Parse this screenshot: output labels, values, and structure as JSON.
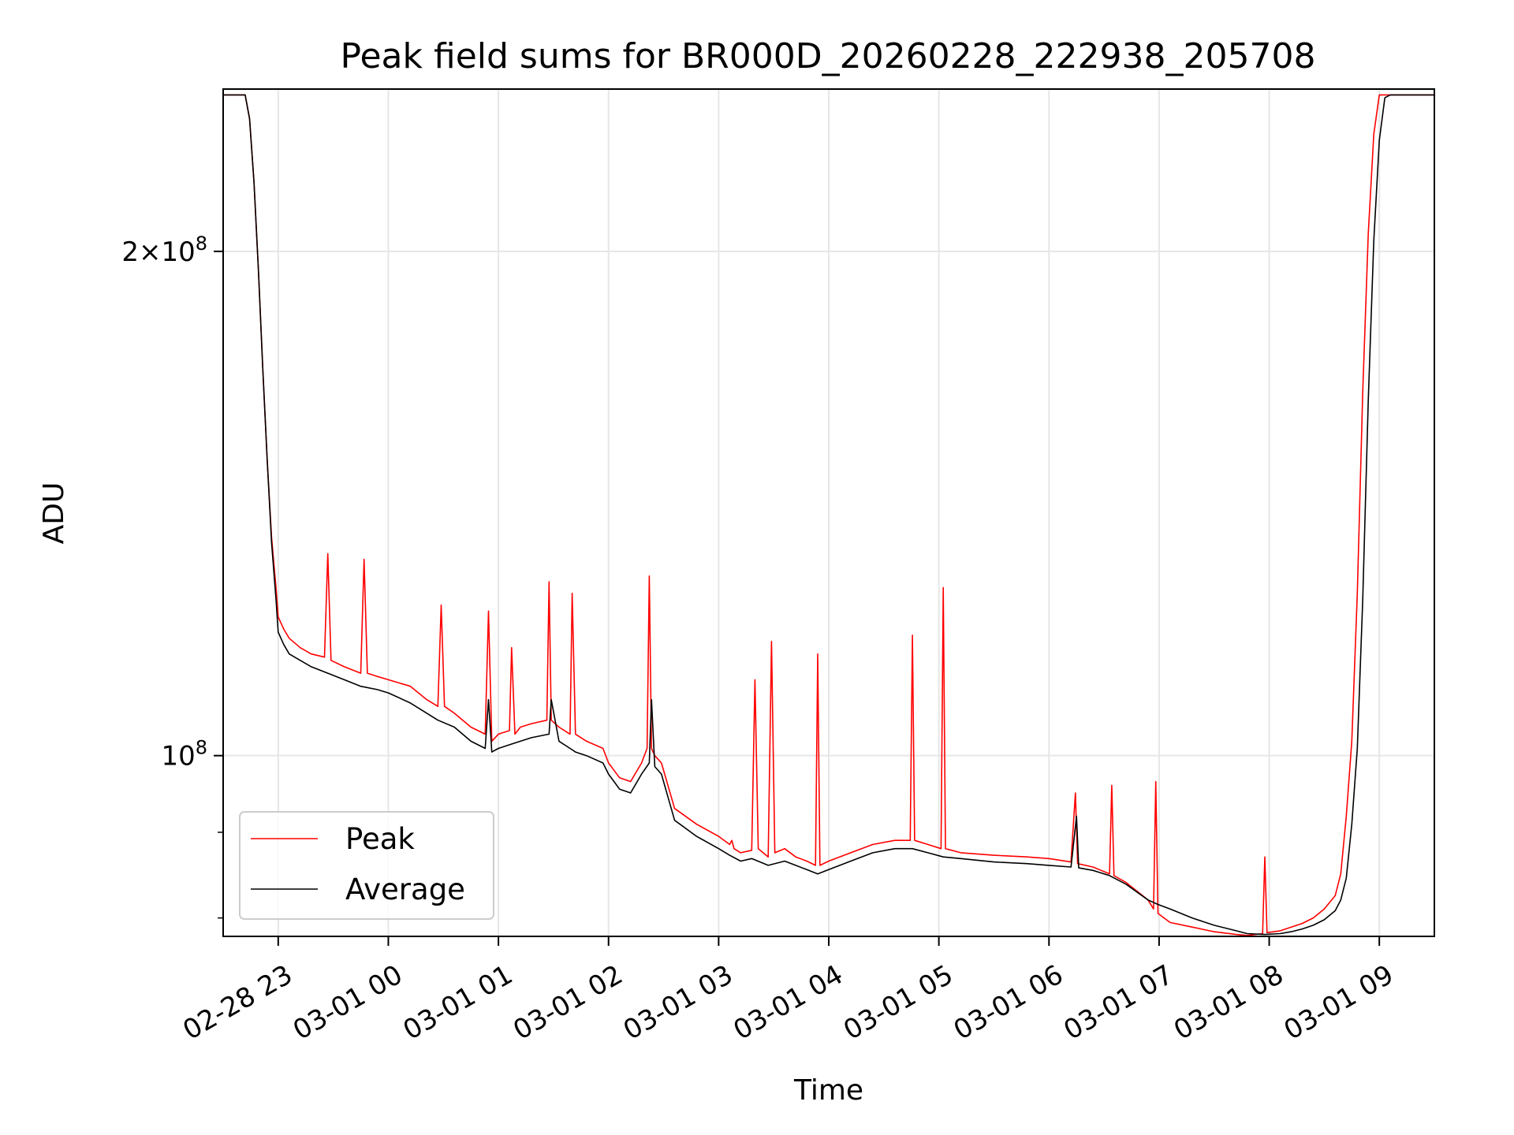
{
  "chart_data": {
    "type": "line",
    "title": "Peak field sums for BR000D_20260228_222938_205708",
    "xlabel": "Time",
    "ylabel": "ADU",
    "yscale": "log",
    "ylim": [
      78000000,
      250000000
    ],
    "xlim": [
      -0.5,
      10.5
    ],
    "grid": true,
    "legend_position": "lower-left",
    "x_ticks": [
      {
        "value": 0,
        "label": "02-28 23"
      },
      {
        "value": 1,
        "label": "03-01 00"
      },
      {
        "value": 2,
        "label": "03-01 01"
      },
      {
        "value": 3,
        "label": "03-01 02"
      },
      {
        "value": 4,
        "label": "03-01 03"
      },
      {
        "value": 5,
        "label": "03-01 04"
      },
      {
        "value": 6,
        "label": "03-01 05"
      },
      {
        "value": 7,
        "label": "03-01 06"
      },
      {
        "value": 8,
        "label": "03-01 07"
      },
      {
        "value": 9,
        "label": "03-01 08"
      },
      {
        "value": 10,
        "label": "03-01 09"
      }
    ],
    "y_ticks": [
      {
        "value": 200000000,
        "label": "2×10⁸",
        "mantissa": "2",
        "exponent": "8"
      },
      {
        "value": 100000000,
        "label": "10⁸",
        "mantissa": "",
        "exponent": "8"
      }
    ],
    "series": [
      {
        "name": "Peak",
        "color": "#ff0000",
        "x": [
          -0.5,
          -0.3,
          -0.26,
          -0.22,
          -0.18,
          -0.14,
          -0.1,
          -0.06,
          -0.02,
          0.0,
          0.05,
          0.1,
          0.2,
          0.3,
          0.42,
          0.45,
          0.48,
          0.6,
          0.75,
          0.78,
          0.81,
          0.9,
          1.0,
          1.2,
          1.35,
          1.45,
          1.48,
          1.51,
          1.6,
          1.75,
          1.88,
          1.91,
          1.94,
          2.0,
          2.1,
          2.12,
          2.15,
          2.2,
          2.3,
          2.44,
          2.46,
          2.48,
          2.55,
          2.65,
          2.67,
          2.7,
          2.8,
          2.95,
          3.0,
          3.05,
          3.1,
          3.2,
          3.3,
          3.35,
          3.37,
          3.39,
          3.42,
          3.48,
          3.6,
          3.8,
          4.0,
          4.1,
          4.12,
          4.14,
          4.2,
          4.3,
          4.33,
          4.36,
          4.45,
          4.48,
          4.51,
          4.6,
          4.7,
          4.8,
          4.88,
          4.9,
          4.92,
          5.0,
          5.2,
          5.4,
          5.6,
          5.74,
          5.76,
          5.78,
          5.9,
          6.02,
          6.04,
          6.06,
          6.2,
          6.5,
          6.8,
          7.0,
          7.2,
          7.24,
          7.26,
          7.4,
          7.55,
          7.57,
          7.59,
          7.7,
          7.9,
          7.95,
          7.97,
          7.99,
          8.1,
          8.3,
          8.5,
          8.7,
          8.8,
          8.94,
          8.96,
          8.98,
          9.1,
          9.2,
          9.3,
          9.4,
          9.5,
          9.6,
          9.65,
          9.7,
          9.75,
          9.8,
          9.85,
          9.9,
          9.95,
          10.0,
          10.05,
          10.1,
          10.5
        ],
        "y": [
          248000000,
          248000000,
          240000000,
          220000000,
          195000000,
          170000000,
          150000000,
          135000000,
          126000000,
          121000000,
          119000000,
          117500000,
          116000000,
          115000000,
          114500000,
          132000000,
          114000000,
          113000000,
          112000000,
          131000000,
          112000000,
          111500000,
          111000000,
          110000000,
          108000000,
          107000000,
          123000000,
          107000000,
          106000000,
          104000000,
          103000000,
          122000000,
          102000000,
          103000000,
          103500000,
          116000000,
          103000000,
          104000000,
          104500000,
          105000000,
          127000000,
          105000000,
          104000000,
          103000000,
          125000000,
          103000000,
          102000000,
          101000000,
          99000000,
          98000000,
          97000000,
          96500000,
          99000000,
          101000000,
          128000000,
          101000000,
          100000000,
          99000000,
          93000000,
          91000000,
          89500000,
          88500000,
          89000000,
          88000000,
          87500000,
          87800000,
          111000000,
          88000000,
          87000000,
          117000000,
          87500000,
          88000000,
          87000000,
          86500000,
          86000000,
          115000000,
          86000000,
          86500000,
          87500000,
          88500000,
          89000000,
          89000000,
          118000000,
          89000000,
          88500000,
          88000000,
          126000000,
          88000000,
          87500000,
          87200000,
          87000000,
          86800000,
          86400000,
          95000000,
          86200000,
          85800000,
          85000000,
          96000000,
          84800000,
          84000000,
          82000000,
          81000000,
          96500000,
          80500000,
          79500000,
          79000000,
          78500000,
          78200000,
          78100000,
          78300000,
          87000000,
          78400000,
          78600000,
          79000000,
          79400000,
          80000000,
          81000000,
          82500000,
          85000000,
          92000000,
          102000000,
          125000000,
          165000000,
          205000000,
          235000000,
          248000000,
          248000000,
          248000000,
          248000000
        ]
      },
      {
        "name": "Average",
        "color": "#000000",
        "x": [
          -0.5,
          -0.3,
          -0.26,
          -0.22,
          -0.18,
          -0.14,
          -0.1,
          -0.06,
          -0.02,
          0.0,
          0.05,
          0.1,
          0.2,
          0.3,
          0.45,
          0.6,
          0.75,
          0.9,
          1.0,
          1.2,
          1.35,
          1.45,
          1.6,
          1.75,
          1.88,
          1.91,
          1.94,
          2.0,
          2.1,
          2.2,
          2.3,
          2.46,
          2.48,
          2.55,
          2.65,
          2.7,
          2.8,
          2.95,
          3.0,
          3.05,
          3.1,
          3.2,
          3.3,
          3.37,
          3.39,
          3.42,
          3.48,
          3.6,
          3.8,
          4.0,
          4.1,
          4.2,
          4.3,
          4.45,
          4.6,
          4.7,
          4.8,
          4.9,
          5.0,
          5.2,
          5.4,
          5.6,
          5.76,
          5.9,
          6.04,
          6.2,
          6.5,
          6.8,
          7.0,
          7.2,
          7.25,
          7.27,
          7.4,
          7.55,
          7.7,
          7.9,
          7.99,
          8.1,
          8.3,
          8.5,
          8.7,
          8.8,
          8.96,
          9.1,
          9.2,
          9.3,
          9.4,
          9.5,
          9.6,
          9.65,
          9.7,
          9.75,
          9.8,
          9.85,
          9.9,
          9.95,
          10.0,
          10.05,
          10.1,
          10.5
        ],
        "y": [
          248000000,
          248000000,
          240000000,
          220000000,
          195000000,
          170000000,
          150000000,
          134000000,
          124000000,
          118500000,
          116500000,
          115000000,
          114000000,
          113000000,
          112000000,
          111000000,
          110000000,
          109500000,
          109000000,
          107500000,
          106000000,
          105000000,
          104000000,
          102000000,
          101000000,
          108000000,
          100500000,
          101000000,
          101500000,
          102000000,
          102500000,
          103000000,
          108000000,
          102000000,
          101000000,
          100500000,
          100000000,
          99000000,
          97500000,
          96500000,
          95500000,
          95000000,
          97500000,
          99000000,
          108000000,
          98500000,
          97500000,
          91500000,
          89500000,
          88000000,
          87200000,
          86500000,
          86800000,
          86000000,
          86500000,
          86000000,
          85500000,
          85000000,
          85500000,
          86500000,
          87500000,
          88000000,
          88000000,
          87500000,
          87000000,
          86800000,
          86400000,
          86200000,
          86000000,
          85800000,
          92000000,
          85700000,
          85400000,
          84800000,
          83800000,
          82000000,
          81500000,
          81000000,
          80000000,
          79200000,
          78600000,
          78300000,
          78200000,
          78300000,
          78500000,
          78800000,
          79200000,
          79800000,
          80800000,
          82000000,
          84500000,
          91000000,
          101000000,
          124000000,
          163000000,
          203000000,
          233000000,
          247000000,
          248000000,
          248000000
        ]
      }
    ]
  }
}
